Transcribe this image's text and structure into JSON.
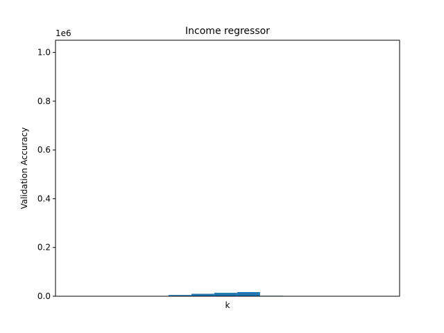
{
  "chart_data": {
    "type": "bar",
    "title": "Income regressor",
    "xlabel": "k",
    "ylabel": "Validation Accuracy",
    "y_offset_label": "1e6",
    "ylim": [
      0,
      1.05
    ],
    "y_ticks": [
      0.0,
      0.2,
      0.4,
      0.6,
      0.8,
      1.0
    ],
    "y_tick_labels": [
      "0.0",
      "0.2",
      "0.4",
      "0.6",
      "0.8",
      "1.0"
    ],
    "x_ticks": [],
    "grid": false,
    "legend": "none",
    "bar_color": "#1f77b4",
    "bars": [
      {
        "x": 1,
        "value": 0.005
      },
      {
        "x": 2,
        "value": 0.01
      },
      {
        "x": 3,
        "value": 0.014
      },
      {
        "x": 4,
        "value": 0.017
      },
      {
        "x": 5,
        "value": 0.002
      }
    ]
  }
}
